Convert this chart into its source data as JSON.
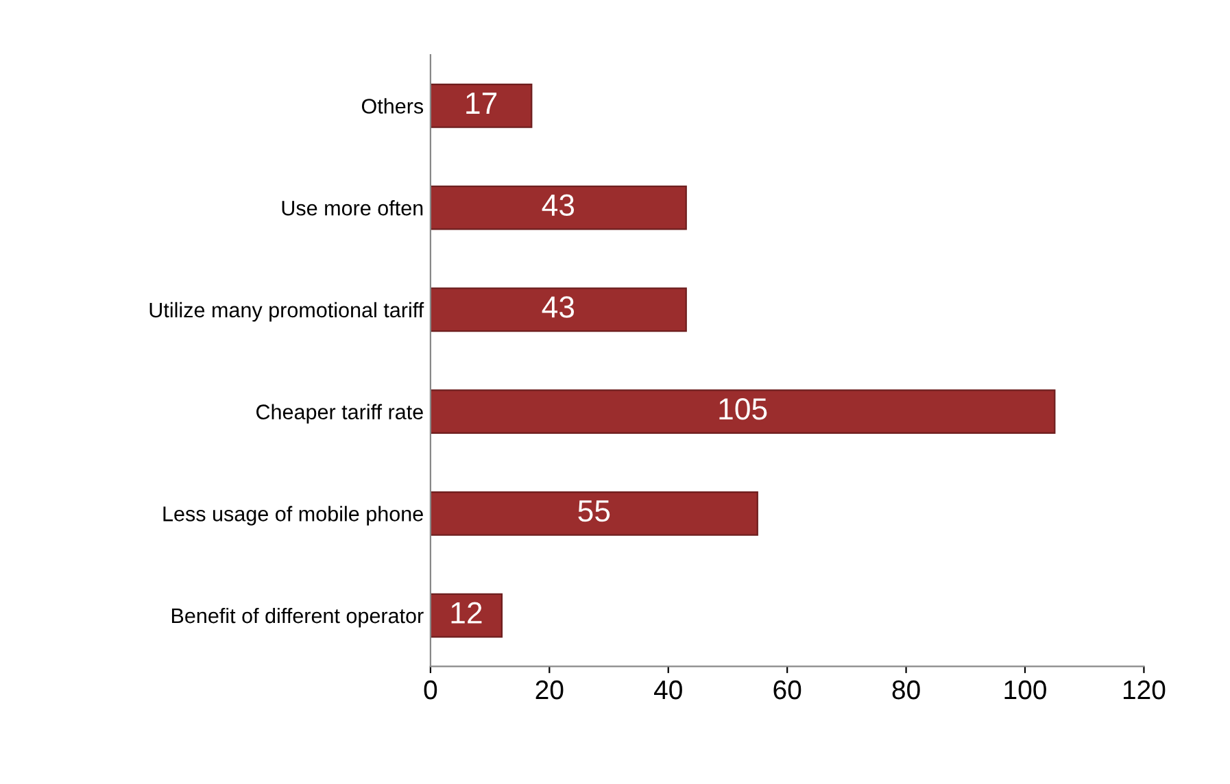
{
  "chart_data": {
    "type": "bar",
    "orientation": "horizontal",
    "categories": [
      "Others",
      "Use more often",
      "Utilize many promotional tariff",
      "Cheaper tariff rate",
      "Less usage of mobile phone",
      "Benefit of different operator"
    ],
    "values": [
      17,
      43,
      43,
      105,
      55,
      12
    ],
    "color": "#9b2d2d",
    "xlim": [
      0,
      120
    ],
    "xticks": [
      0,
      20,
      40,
      60,
      80,
      100,
      120
    ],
    "grid": false,
    "data_labels": true
  }
}
